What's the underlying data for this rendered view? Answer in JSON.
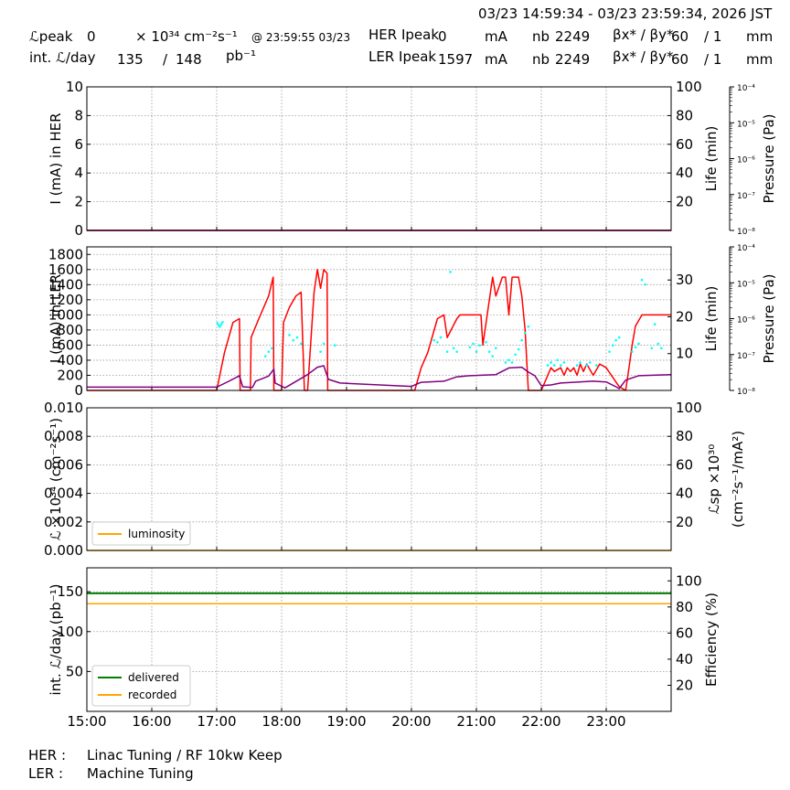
{
  "header": {
    "time_range": "03/23 14:59:34 - 03/23 23:59:34, 2026 JST",
    "row1": {
      "lumi_label": "ℒpeak",
      "lumi_value": "0",
      "lumi_unit": "× 10³⁴ cm⁻²s⁻¹",
      "lumi_time": "@ 23:59:55 03/23",
      "her_label": "HER Ipeak",
      "her_value": "0",
      "her_unit": "mA",
      "nb_label": "nb",
      "nb_value": "2249",
      "beta_label": "βx* / βy*",
      "beta_x": "60",
      "beta_y": "/ 1",
      "beta_unit": "mm"
    },
    "row2": {
      "int_label": "int. ℒ/day",
      "int_recorded": "135",
      "int_sep": "/",
      "int_delivered": "148",
      "int_unit": "pb⁻¹",
      "ler_label": "LER Ipeak",
      "ler_value": "1597",
      "ler_unit": "mA",
      "nb_label": "nb",
      "nb_value": "2249",
      "beta_label": "βx* / βy*",
      "beta_x": "60",
      "beta_y": "/ 1",
      "beta_unit": "mm"
    }
  },
  "footer": {
    "her_label": "HER :",
    "her_status": "Linac Tuning / RF 10kw Keep",
    "ler_label": "LER :",
    "ler_status": "Machine Tuning"
  },
  "colors": {
    "current": "#ff0000",
    "life": "#800080",
    "pressure": "#00ffff",
    "luminosity": "#ffa500",
    "delivered": "#008000",
    "recorded": "#ffa500",
    "grid": "#999999"
  },
  "chart_data": [
    {
      "type": "line",
      "panel": "her",
      "x_unit": "hour",
      "xlim": [
        "15:00",
        "24:00"
      ],
      "x_ticks": [
        "15:00",
        "16:00",
        "17:00",
        "18:00",
        "19:00",
        "20:00",
        "21:00",
        "22:00",
        "23:00"
      ],
      "ylabel": "I (mA) in HER",
      "ylim": [
        0,
        10
      ],
      "y_ticks": [
        "0",
        "2",
        "4",
        "6",
        "8",
        "10"
      ],
      "y2label": "Life (min)",
      "y2lim": [
        0,
        100
      ],
      "y2_ticks": [
        "20",
        "40",
        "60",
        "80",
        "100"
      ],
      "y3label": "Pressure (Pa)",
      "y3_scale": "log",
      "y3lim": [
        1e-08,
        0.0001
      ],
      "y3_ticks": [
        "10⁻⁸",
        "10⁻⁷",
        "10⁻⁶",
        "10⁻⁵",
        "10⁻⁴"
      ],
      "grid": true,
      "series": [
        {
          "role": "current",
          "x": [
            15.0,
            24.0
          ],
          "y": [
            0.0,
            0.0
          ]
        },
        {
          "role": "life",
          "x": [
            15.0,
            24.0
          ],
          "y": [
            0.0,
            0.0
          ]
        }
      ]
    },
    {
      "type": "line",
      "panel": "ler",
      "x_unit": "hour",
      "xlim": [
        "15:00",
        "24:00"
      ],
      "ylabel": "I (mA) in LER",
      "ylim": [
        0,
        1900
      ],
      "y_ticks": [
        "0",
        "200",
        "400",
        "600",
        "800",
        "1000",
        "1200",
        "1400",
        "1600",
        "1800"
      ],
      "y2label": "Life (min)",
      "y2lim": [
        0,
        39
      ],
      "y2_ticks": [
        "10",
        "20",
        "30"
      ],
      "y3label": "Pressure (Pa)",
      "y3_scale": "log",
      "y3lim": [
        1e-08,
        0.0001
      ],
      "y3_ticks": [
        "10⁻⁸",
        "10⁻⁷",
        "10⁻⁶",
        "10⁻⁵",
        "10⁻⁴"
      ],
      "grid": true,
      "series": [
        {
          "role": "current",
          "x": [
            15.0,
            17.0,
            17.12,
            17.25,
            17.35,
            17.36,
            17.52,
            17.53,
            17.65,
            17.8,
            17.87,
            17.88,
            18.0,
            18.03,
            18.12,
            18.22,
            18.3,
            18.35,
            18.4,
            18.5,
            18.55,
            18.6,
            18.65,
            18.7,
            18.71,
            20.0,
            20.05,
            20.15,
            20.25,
            20.4,
            20.5,
            20.55,
            20.7,
            20.75,
            20.95,
            21.07,
            21.1,
            21.2,
            21.25,
            21.3,
            21.4,
            21.45,
            21.5,
            21.55,
            21.6,
            21.65,
            21.7,
            21.75,
            21.8,
            21.9,
            22.0,
            22.15,
            22.2,
            22.3,
            22.35,
            22.4,
            22.45,
            22.5,
            22.55,
            22.6,
            22.65,
            22.7,
            22.8,
            22.9,
            23.0,
            23.2,
            23.3,
            23.35,
            23.4,
            23.45,
            23.55,
            24.0
          ],
          "y": [
            0,
            0,
            500,
            900,
            950,
            0,
            0,
            700,
            950,
            1250,
            1500,
            0,
            0,
            900,
            1100,
            1250,
            1300,
            0,
            0,
            1300,
            1600,
            1350,
            1600,
            1550,
            0,
            0,
            0,
            300,
            500,
            950,
            1000,
            700,
            950,
            1000,
            1000,
            1000,
            600,
            1200,
            1500,
            1250,
            1500,
            1500,
            1000,
            1500,
            1500,
            1500,
            1250,
            800,
            0,
            0,
            0,
            300,
            250,
            300,
            200,
            300,
            250,
            300,
            200,
            350,
            250,
            350,
            200,
            350,
            300,
            50,
            0,
            300,
            600,
            850,
            1000,
            1000
          ]
        },
        {
          "role": "life",
          "x": [
            15.0,
            17.0,
            17.2,
            17.35,
            17.4,
            17.55,
            17.6,
            17.8,
            17.88,
            17.9,
            18.05,
            18.1,
            18.4,
            18.55,
            18.65,
            18.72,
            18.9,
            20.0,
            20.05,
            20.15,
            20.5,
            20.7,
            20.9,
            21.3,
            21.5,
            21.7,
            21.8,
            21.9,
            22.0,
            22.15,
            22.3,
            22.8,
            23.0,
            23.15,
            23.2,
            23.3,
            23.5,
            24.0
          ],
          "y": [
            0.9,
            0.9,
            2.6,
            4.0,
            1.0,
            0.8,
            2.5,
            3.9,
            5.8,
            2.0,
            0.7,
            1.2,
            4.3,
            6.3,
            6.7,
            3.0,
            2.0,
            1.1,
            1.5,
            2.2,
            2.5,
            3.7,
            4.0,
            4.3,
            6.1,
            6.3,
            5.0,
            4.0,
            1.3,
            1.5,
            2.0,
            2.5,
            2.3,
            1.0,
            0.5,
            2.8,
            4.0,
            4.3
          ]
        },
        {
          "role": "pressure",
          "scatter": true,
          "x": [
            17.01,
            17.03,
            17.05,
            17.07,
            17.09,
            17.75,
            17.8,
            17.85,
            18.12,
            18.18,
            18.24,
            18.3,
            18.6,
            18.65,
            18.82,
            20.35,
            20.4,
            20.45,
            20.55,
            20.6,
            20.65,
            20.7,
            20.9,
            20.95,
            21.0,
            21.05,
            21.15,
            21.2,
            21.25,
            21.3,
            21.45,
            21.5,
            21.55,
            21.6,
            21.65,
            21.7,
            21.75,
            21.8,
            22.1,
            22.15,
            22.2,
            22.25,
            22.3,
            22.35,
            22.55,
            22.6,
            22.7,
            22.75,
            22.85,
            23.05,
            23.1,
            23.15,
            23.2,
            23.4,
            23.45,
            23.5,
            23.55,
            23.6,
            23.7,
            23.75,
            23.8,
            23.85
          ],
          "y": [
            7.5e-07,
            6.5e-07,
            6e-07,
            7e-07,
            8e-07,
            9e-08,
            1.2e-07,
            1.5e-07,
            3.5e-07,
            2.5e-07,
            3e-07,
            2e-07,
            1.2e-07,
            2e-07,
            1.8e-07,
            2.5e-07,
            2.2e-07,
            3e-07,
            1.2e-07,
            2e-05,
            1.5e-07,
            1.2e-07,
            1.6e-07,
            2e-07,
            1.2e-07,
            1.8e-07,
            2.2e-07,
            1.2e-07,
            9e-08,
            1.5e-07,
            6e-08,
            7e-08,
            6e-08,
            1e-07,
            1.4e-07,
            2.5e-07,
            4e-07,
            6e-07,
            5e-08,
            6e-08,
            5e-08,
            7e-08,
            5e-08,
            6e-08,
            5e-08,
            6e-08,
            5e-08,
            6e-08,
            5e-08,
            1.2e-07,
            1.8e-07,
            2.5e-07,
            3e-07,
            1.2e-07,
            1.6e-07,
            2e-07,
            1.2e-05,
            9e-06,
            1.5e-07,
            7e-07,
            2e-07,
            1.5e-07
          ]
        }
      ]
    },
    {
      "type": "line",
      "panel": "luminosity",
      "x_unit": "hour",
      "xlim": [
        "15:00",
        "24:00"
      ],
      "ylabel": "ℒ ×10³⁴ (cm⁻²s⁻¹)",
      "ylim": [
        0,
        0.01
      ],
      "y_ticks": [
        "0.000",
        "0.002",
        "0.004",
        "0.006",
        "0.008",
        "0.010"
      ],
      "y2label_1": "ℒsp ×10³⁰",
      "y2label_2": "(cm⁻²s⁻¹/mA²)",
      "y2lim": [
        0,
        100
      ],
      "y2_ticks": [
        "20",
        "40",
        "60",
        "80",
        "100"
      ],
      "legend": [
        "luminosity"
      ],
      "legend_position": "lower-left",
      "grid": true,
      "series": [
        {
          "name": "luminosity",
          "x": [
            15.0,
            24.0
          ],
          "y": [
            0.0,
            0.0
          ]
        }
      ]
    },
    {
      "type": "line",
      "panel": "integrated",
      "x_unit": "hour",
      "xlim": [
        "15:00",
        "24:00"
      ],
      "x_ticks": [
        "15:00",
        "16:00",
        "17:00",
        "18:00",
        "19:00",
        "20:00",
        "21:00",
        "22:00",
        "23:00"
      ],
      "ylabel": "int. ℒ/day (pb⁻¹)",
      "ylim": [
        0,
        180
      ],
      "y_ticks": [
        "50",
        "100",
        "150"
      ],
      "y2label": "Efficiency (%)",
      "y2lim": [
        0,
        110
      ],
      "y2_ticks": [
        "20",
        "40",
        "60",
        "80",
        "100"
      ],
      "legend": [
        "delivered",
        "recorded"
      ],
      "legend_position": "lower-left",
      "grid": true,
      "series": [
        {
          "name": "delivered",
          "x": [
            15.0,
            24.0
          ],
          "y": [
            148,
            148
          ]
        },
        {
          "name": "recorded",
          "x": [
            15.0,
            24.0
          ],
          "y": [
            135,
            135
          ]
        }
      ]
    }
  ]
}
